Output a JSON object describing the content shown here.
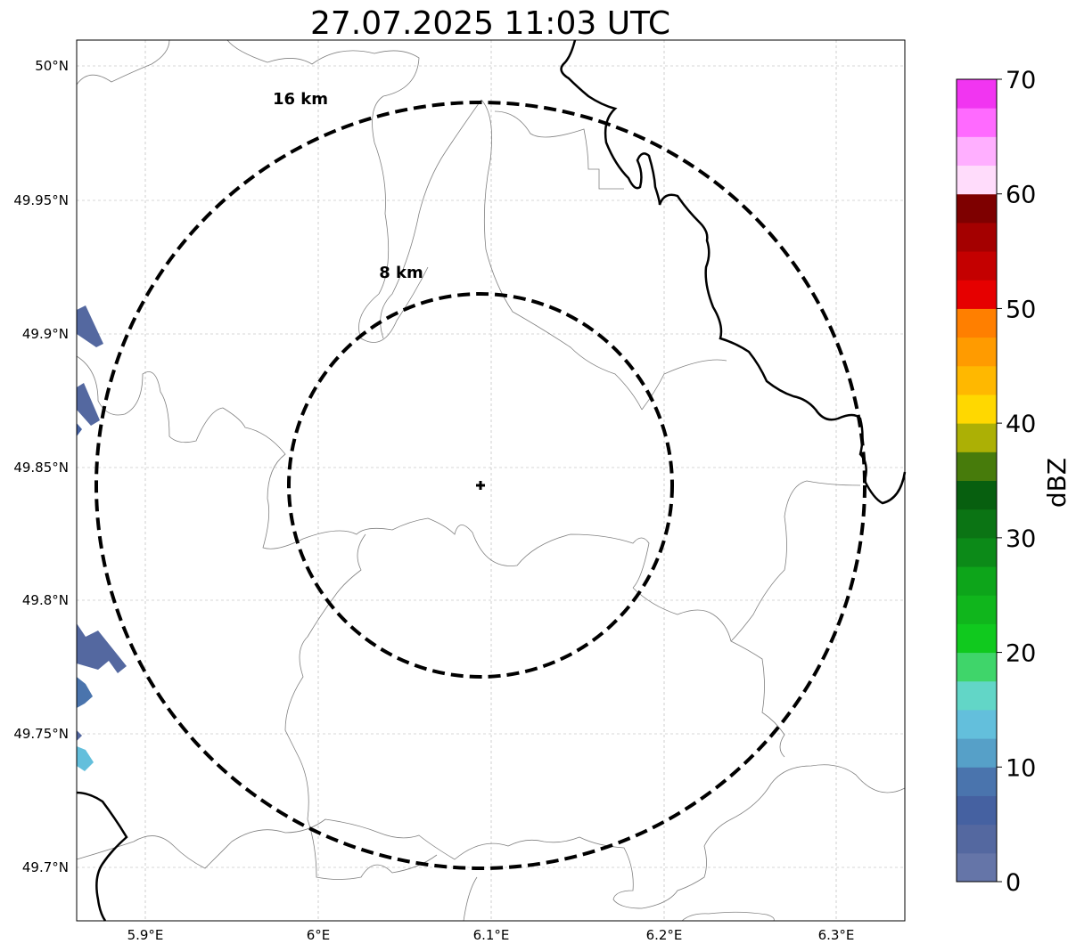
{
  "title": "27.07.2025 11:03 UTC",
  "map": {
    "lat_ticks": [
      "50°N",
      "49.95°N",
      "49.9°N",
      "49.85°N",
      "49.8°N",
      "49.75°N",
      "49.7°N"
    ],
    "lon_ticks": [
      "5.9°E",
      "6°E",
      "6.1°E",
      "6.2°E",
      "6.3°E"
    ],
    "gridlines": true,
    "center_marker": "crosshair-icon",
    "range_rings": [
      {
        "label": "8 km",
        "radius_km": 8
      },
      {
        "label": "16 km",
        "radius_km": 16
      }
    ]
  },
  "colorbar": {
    "label": "dBZ",
    "min": 0,
    "max": 70,
    "step": 2.5,
    "tick_labels": [
      "0",
      "10",
      "20",
      "30",
      "40",
      "50",
      "60",
      "70"
    ],
    "colors": [
      "#6575a8",
      "#5468a0",
      "#4561a1",
      "#4a74ad",
      "#56a0c8",
      "#63bfdc",
      "#62d6c7",
      "#3fd56a",
      "#10c91e",
      "#10b61c",
      "#0da51a",
      "#0c8a18",
      "#0b7414",
      "#075f0f",
      "#477b0b",
      "#acb005",
      "#ffd800",
      "#ffb800",
      "#ff9b00",
      "#ff7f00",
      "#e60000",
      "#c40000",
      "#a40000",
      "#7e0000",
      "#ffdcfb",
      "#ffafff",
      "#ff6aff",
      "#f135f1"
    ]
  }
}
